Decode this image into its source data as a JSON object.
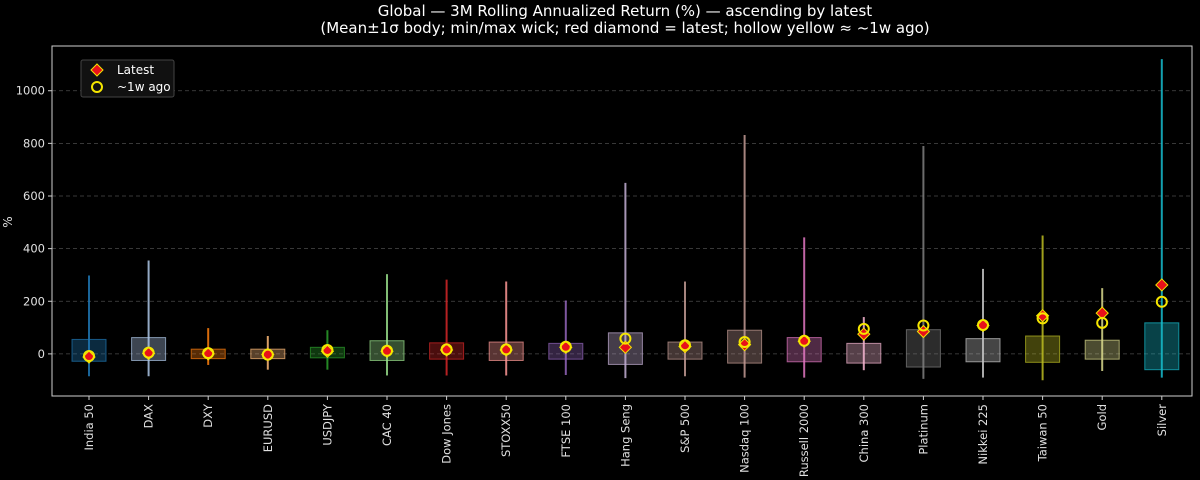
{
  "chart_data": {
    "type": "candlestick-box",
    "title_line1": "Global — 3M Rolling Annualized Return (%) — ascending by latest",
    "title_line2": "(Mean±1σ body; min/max wick; red diamond = latest; hollow yellow ≈ ~1w ago)",
    "ylabel": "%",
    "xlabel": "",
    "ylim": [
      -160,
      1170
    ],
    "yticks": [
      0,
      200,
      400,
      600,
      800,
      1000
    ],
    "grid": true,
    "legend_position": "top-left",
    "legend": [
      {
        "label": "Latest",
        "marker": "red-diamond"
      },
      {
        "label": "~1w ago",
        "marker": "hollow-yellow-circle"
      }
    ],
    "colors": {
      "latest_marker": "#e8101a",
      "week_ago_marker": "#f5e600",
      "background": "#000000",
      "grid": "#444444"
    },
    "categories": [
      "India 50",
      "DAX",
      "DXY",
      "EURUSD",
      "USDJPY",
      "CAC 40",
      "Dow Jones",
      "STOXX50",
      "FTSE 100",
      "Hang Seng",
      "S&P 500",
      "Nasdaq 100",
      "Russell 2000",
      "China 300",
      "Platinum",
      "Nikkei 225",
      "Taiwan 50",
      "Gold",
      "Silver"
    ],
    "series": [
      {
        "category": "India 50",
        "color": "#1f77b4",
        "min": -85,
        "max": 298,
        "mean_minus_sd": -28,
        "mean_plus_sd": 55,
        "latest": -12,
        "week_ago": -8
      },
      {
        "category": "DAX",
        "color": "#aec7e8",
        "min": -85,
        "max": 355,
        "mean_minus_sd": -25,
        "mean_plus_sd": 62,
        "latest": 2,
        "week_ago": 5
      },
      {
        "category": "DXY",
        "color": "#ff7f0e",
        "min": -42,
        "max": 98,
        "mean_minus_sd": -18,
        "mean_plus_sd": 18,
        "latest": 0,
        "week_ago": 3
      },
      {
        "category": "EURUSD",
        "color": "#ffbb78",
        "min": -60,
        "max": 68,
        "mean_minus_sd": -18,
        "mean_plus_sd": 18,
        "latest": -2,
        "week_ago": -3
      },
      {
        "category": "USDJPY",
        "color": "#2ca02c",
        "min": -60,
        "max": 90,
        "mean_minus_sd": -15,
        "mean_plus_sd": 25,
        "latest": 10,
        "week_ago": 15
      },
      {
        "category": "CAC 40",
        "color": "#98df8a",
        "min": -82,
        "max": 303,
        "mean_minus_sd": -25,
        "mean_plus_sd": 50,
        "latest": 10,
        "week_ago": 12
      },
      {
        "category": "Dow Jones",
        "color": "#d62728",
        "min": -82,
        "max": 282,
        "mean_minus_sd": -20,
        "mean_plus_sd": 42,
        "latest": 15,
        "week_ago": 17
      },
      {
        "category": "STOXX50",
        "color": "#ff9896",
        "min": -82,
        "max": 275,
        "mean_minus_sd": -25,
        "mean_plus_sd": 45,
        "latest": 15,
        "week_ago": 17
      },
      {
        "category": "FTSE 100",
        "color": "#9467bd",
        "min": -80,
        "max": 203,
        "mean_minus_sd": -20,
        "mean_plus_sd": 40,
        "latest": 25,
        "week_ago": 27
      },
      {
        "category": "Hang Seng",
        "color": "#c5b0d5",
        "min": -92,
        "max": 650,
        "mean_minus_sd": -40,
        "mean_plus_sd": 80,
        "latest": 25,
        "week_ago": 58
      },
      {
        "category": "S&P 500",
        "color": "#c49c94",
        "min": -85,
        "max": 275,
        "mean_minus_sd": -20,
        "mean_plus_sd": 45,
        "latest": 28,
        "week_ago": 33
      },
      {
        "category": "Nasdaq 100",
        "color": "#c49c94",
        "min": -90,
        "max": 832,
        "mean_minus_sd": -35,
        "mean_plus_sd": 90,
        "latest": 35,
        "week_ago": 45
      },
      {
        "category": "Russell 2000",
        "color": "#e377c2",
        "min": -90,
        "max": 443,
        "mean_minus_sd": -30,
        "mean_plus_sd": 62,
        "latest": 48,
        "week_ago": 50
      },
      {
        "category": "China 300",
        "color": "#f7b6d2",
        "min": -62,
        "max": 140,
        "mean_minus_sd": -35,
        "mean_plus_sd": 40,
        "latest": 75,
        "week_ago": 95
      },
      {
        "category": "Platinum",
        "color": "#7f7f7f",
        "min": -95,
        "max": 790,
        "mean_minus_sd": -50,
        "mean_plus_sd": 92,
        "latest": 85,
        "week_ago": 108
      },
      {
        "category": "Nikkei 225",
        "color": "#c7c7c7",
        "min": -90,
        "max": 323,
        "mean_minus_sd": -30,
        "mean_plus_sd": 58,
        "latest": 108,
        "week_ago": 110
      },
      {
        "category": "Taiwan 50",
        "color": "#bcbd22",
        "min": -100,
        "max": 450,
        "mean_minus_sd": -32,
        "mean_plus_sd": 68,
        "latest": 145,
        "week_ago": 135
      },
      {
        "category": "Gold",
        "color": "#dbdb8d",
        "min": -65,
        "max": 250,
        "mean_minus_sd": -20,
        "mean_plus_sd": 52,
        "latest": 155,
        "week_ago": 118
      },
      {
        "category": "Silver",
        "color": "#17becf",
        "min": -90,
        "max": 1120,
        "mean_minus_sd": -60,
        "mean_plus_sd": 118,
        "latest": 262,
        "week_ago": 198
      }
    ]
  }
}
